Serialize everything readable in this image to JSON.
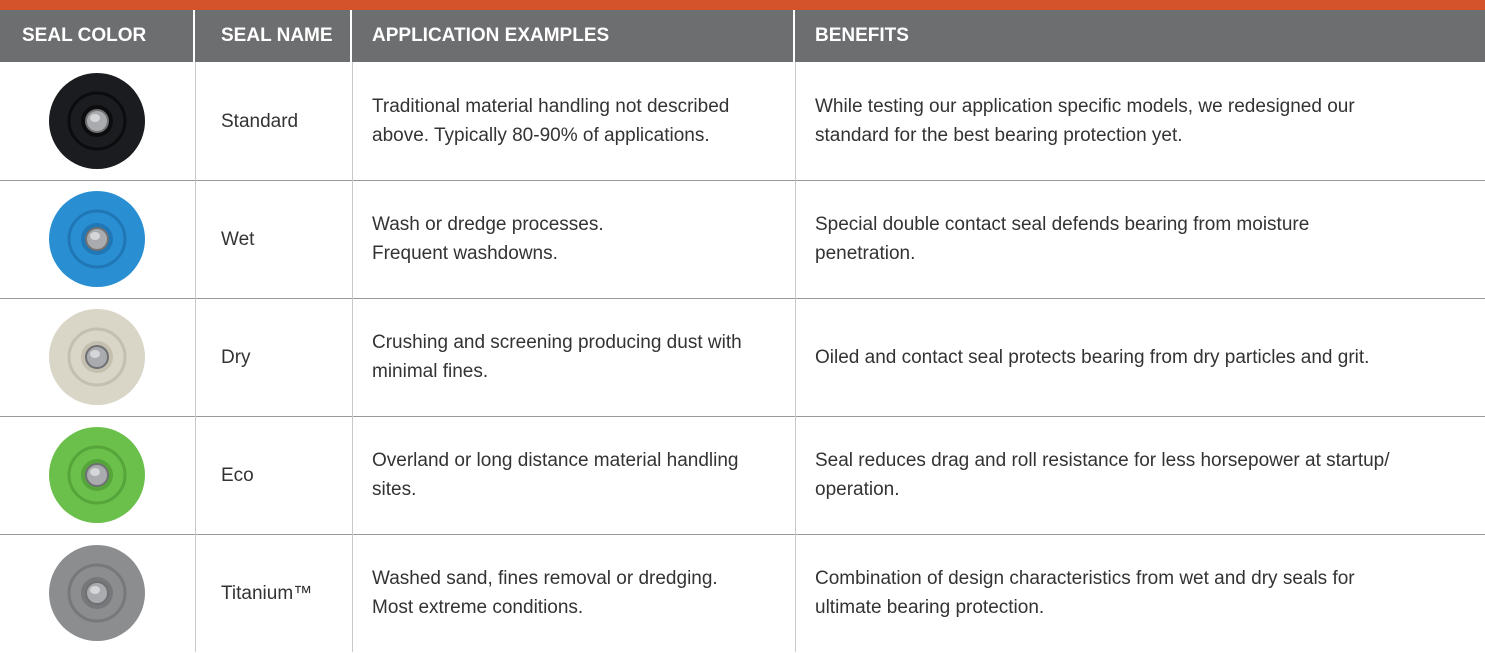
{
  "table": {
    "header": [
      "SEAL COLOR",
      "SEAL NAME",
      "APPLICATION EXAMPLES",
      "BENEFITS"
    ],
    "rows": [
      {
        "seal_name": "Standard",
        "application": [
          "Traditional material handling not described",
          "above.  Typically 80-90% of applications."
        ],
        "benefits": [
          "While testing our application specific models, we redesigned our",
          "standard for the best bearing protection yet."
        ]
      },
      {
        "seal_name": "Wet",
        "application": [
          "Wash or dredge processes.",
          "Frequent washdowns."
        ],
        "benefits": [
          "Special double contact seal defends bearing from moisture",
          "penetration."
        ]
      },
      {
        "seal_name": "Dry",
        "application": [
          "Crushing and screening producing dust with",
          "minimal fines."
        ],
        "benefits": [
          "Oiled and contact seal protects bearing from dry particles and grit."
        ]
      },
      {
        "seal_name": "Eco",
        "application": [
          "Overland or long distance material handling",
          "sites."
        ],
        "benefits": [
          "Seal reduces drag and roll resistance for less horsepower at startup/",
          "operation."
        ]
      },
      {
        "seal_name": "Titanium™",
        "application": [
          "Washed sand, fines removal or dredging.",
          "Most extreme conditions."
        ],
        "benefits": [
          "Combination of design characteristics from wet and dry seals for",
          "ultimate bearing protection."
        ]
      }
    ]
  }
}
